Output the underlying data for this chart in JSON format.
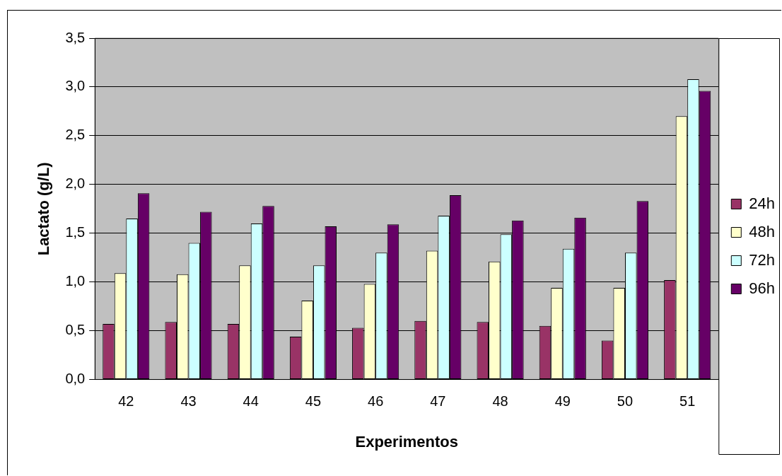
{
  "chart_data": {
    "type": "bar",
    "xlabel": "Experimentos",
    "ylabel": "Lactato (g/L)",
    "categories": [
      "42",
      "43",
      "44",
      "45",
      "46",
      "47",
      "48",
      "49",
      "50",
      "51"
    ],
    "series": [
      {
        "name": "24h",
        "color": "#993366",
        "values": [
          0.57,
          0.59,
          0.57,
          0.44,
          0.53,
          0.6,
          0.59,
          0.55,
          0.4,
          1.02
        ]
      },
      {
        "name": "48h",
        "color": "#ffffcc",
        "values": [
          1.09,
          1.08,
          1.17,
          0.81,
          0.98,
          1.32,
          1.21,
          0.94,
          0.94,
          2.7
        ]
      },
      {
        "name": "72h",
        "color": "#ccffff",
        "values": [
          1.65,
          1.4,
          1.6,
          1.17,
          1.3,
          1.68,
          1.49,
          1.34,
          1.3,
          3.08
        ]
      },
      {
        "name": "96h",
        "color": "#660066",
        "values": [
          1.91,
          1.72,
          1.78,
          1.57,
          1.59,
          1.89,
          1.63,
          1.66,
          1.83,
          2.96
        ]
      }
    ],
    "ylim": [
      0,
      3.5
    ],
    "yticks": [
      {
        "value": 0,
        "label": "0,0"
      },
      {
        "value": 0.5,
        "label": "0,5"
      },
      {
        "value": 1,
        "label": "1,0"
      },
      {
        "value": 1.5,
        "label": "1,5"
      },
      {
        "value": 2,
        "label": "2,0"
      },
      {
        "value": 2.5,
        "label": "2,5"
      },
      {
        "value": 3,
        "label": "3,0"
      },
      {
        "value": 3.5,
        "label": "3,5"
      }
    ],
    "grid": "y",
    "legend": "right"
  }
}
